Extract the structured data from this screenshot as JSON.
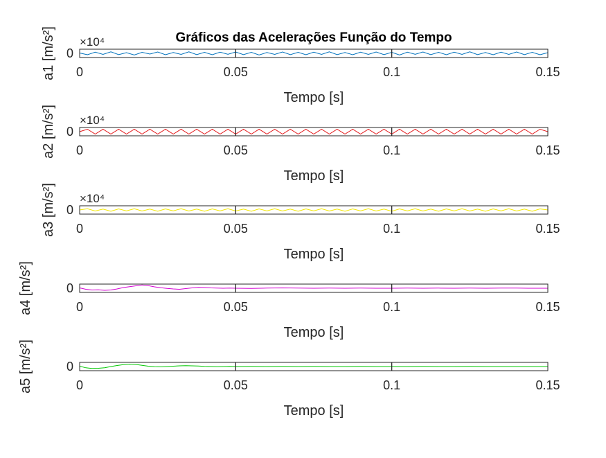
{
  "chart_data": {
    "type": "line",
    "title": "Gráficos das Acelerações Função do Tempo",
    "xlabel": "Tempo [s]",
    "xlim": [
      0,
      0.15
    ],
    "xticks": [
      "0",
      "0.05",
      "0.1",
      "0.15"
    ],
    "ytick": "0",
    "subplots": [
      {
        "ylabel": "a1 [m/s²]",
        "color": "#0072BD",
        "multiplier": "×10⁴",
        "x": [
          0,
          0.0025,
          0.005,
          0.0075,
          0.01,
          0.0125,
          0.015,
          0.0175,
          0.02,
          0.0225,
          0.025,
          0.0275,
          0.03,
          0.0325,
          0.035,
          0.0375,
          0.04,
          0.0425,
          0.045,
          0.0475,
          0.05,
          0.0525,
          0.055,
          0.0575,
          0.06,
          0.0625,
          0.065,
          0.0675,
          0.07,
          0.0725,
          0.075,
          0.0775,
          0.08,
          0.0825,
          0.085,
          0.0875,
          0.09,
          0.0925,
          0.095,
          0.0975,
          0.1,
          0.1025,
          0.105,
          0.1075,
          0.11,
          0.1125,
          0.115,
          0.1175,
          0.12,
          0.1225,
          0.125,
          0.1275,
          0.13,
          0.1325,
          0.135,
          0.1375,
          0.14,
          0.1425,
          0.145,
          0.1475,
          0.15
        ],
        "y": [
          0.1,
          -0.4,
          0.35,
          -0.3,
          0.45,
          -0.35,
          0.2,
          -0.45,
          0.3,
          -0.2,
          0.4,
          -0.4,
          0.25,
          -0.3,
          0.45,
          -0.35,
          0.3,
          -0.4,
          0.35,
          -0.25,
          0.4,
          -0.35,
          0.3,
          -0.45,
          0.25,
          -0.3,
          0.4,
          -0.35,
          0.3,
          -0.4,
          0.35,
          -0.3,
          0.45,
          -0.35,
          0.25,
          -0.4,
          0.35,
          -0.3,
          0.4,
          -0.35,
          0.3,
          -0.45,
          0.35,
          -0.25,
          0.4,
          -0.35,
          0.3,
          -0.4,
          0.35,
          -0.3,
          0.45,
          -0.35,
          0.25,
          -0.4,
          0.35,
          -0.3,
          0.4,
          -0.35,
          0.3,
          -0.4,
          0.2
        ]
      },
      {
        "ylabel": "a2 [m/s²]",
        "color": "#E41A1C",
        "multiplier": "×10⁴",
        "x": [
          0,
          0.0025,
          0.005,
          0.0075,
          0.01,
          0.0125,
          0.015,
          0.0175,
          0.02,
          0.0225,
          0.025,
          0.0275,
          0.03,
          0.0325,
          0.035,
          0.0375,
          0.04,
          0.0425,
          0.045,
          0.0475,
          0.05,
          0.0525,
          0.055,
          0.0575,
          0.06,
          0.0625,
          0.065,
          0.0675,
          0.07,
          0.0725,
          0.075,
          0.0775,
          0.08,
          0.0825,
          0.085,
          0.0875,
          0.09,
          0.0925,
          0.095,
          0.0975,
          0.1,
          0.1025,
          0.105,
          0.1075,
          0.11,
          0.1125,
          0.115,
          0.1175,
          0.12,
          0.1225,
          0.125,
          0.1275,
          0.13,
          0.1325,
          0.135,
          0.1375,
          0.14,
          0.1425,
          0.145,
          0.1475,
          0.15
        ],
        "y": [
          0,
          0.7,
          -0.7,
          0.7,
          -0.7,
          0.7,
          -0.7,
          0.7,
          -0.7,
          0.7,
          -0.7,
          0.7,
          -0.7,
          0.7,
          -0.7,
          0.7,
          -0.7,
          0.7,
          -0.7,
          0.7,
          -0.7,
          0.7,
          -0.7,
          0.7,
          -0.7,
          0.7,
          -0.7,
          0.7,
          -0.7,
          0.7,
          -0.7,
          0.7,
          -0.7,
          0.7,
          -0.7,
          0.7,
          -0.7,
          0.7,
          -0.7,
          0.7,
          -0.7,
          0.7,
          -0.7,
          0.7,
          -0.7,
          0.7,
          -0.7,
          0.7,
          -0.7,
          0.7,
          -0.7,
          0.7,
          -0.7,
          0.7,
          -0.7,
          0.7,
          -0.7,
          0.7,
          -0.7,
          0.7,
          0
        ]
      },
      {
        "ylabel": "a3 [m/s²]",
        "color": "#F2E600",
        "multiplier": "×10⁴",
        "x": [
          0,
          0.0025,
          0.005,
          0.0075,
          0.01,
          0.0125,
          0.015,
          0.0175,
          0.02,
          0.0225,
          0.025,
          0.0275,
          0.03,
          0.0325,
          0.035,
          0.0375,
          0.04,
          0.0425,
          0.045,
          0.0475,
          0.05,
          0.0525,
          0.055,
          0.0575,
          0.06,
          0.0625,
          0.065,
          0.0675,
          0.07,
          0.0725,
          0.075,
          0.0775,
          0.08,
          0.0825,
          0.085,
          0.0875,
          0.09,
          0.0925,
          0.095,
          0.0975,
          0.1,
          0.1025,
          0.105,
          0.1075,
          0.11,
          0.1125,
          0.115,
          0.1175,
          0.12,
          0.1225,
          0.125,
          0.1275,
          0.13,
          0.1325,
          0.135,
          0.1375,
          0.14,
          0.1425,
          0.145,
          0.1475,
          0.15
        ],
        "y": [
          0,
          0.35,
          -0.3,
          0.25,
          -0.35,
          0.3,
          -0.25,
          0.35,
          -0.3,
          0.25,
          -0.35,
          0.3,
          -0.25,
          0.35,
          -0.3,
          0.25,
          -0.35,
          0.3,
          -0.25,
          0.35,
          -0.3,
          0.25,
          -0.35,
          0.3,
          -0.25,
          0.35,
          -0.3,
          0.25,
          -0.35,
          0.3,
          -0.25,
          0.35,
          -0.3,
          0.25,
          -0.35,
          0.3,
          -0.25,
          0.35,
          -0.3,
          0.25,
          -0.35,
          0.3,
          -0.25,
          0.35,
          -0.3,
          0.25,
          -0.35,
          0.3,
          -0.25,
          0.35,
          -0.3,
          0.25,
          -0.35,
          0.3,
          -0.25,
          0.35,
          -0.3,
          0.25,
          -0.35,
          0.3,
          0
        ]
      },
      {
        "ylabel": "a4 [m/s²]",
        "color": "#D400D4",
        "multiplier": "",
        "x": [
          0,
          0.002,
          0.004,
          0.006,
          0.008,
          0.01,
          0.012,
          0.014,
          0.016,
          0.018,
          0.02,
          0.022,
          0.024,
          0.026,
          0.028,
          0.03,
          0.032,
          0.034,
          0.036,
          0.038,
          0.04,
          0.042,
          0.044,
          0.046,
          0.048,
          0.05,
          0.055,
          0.06,
          0.065,
          0.07,
          0.075,
          0.08,
          0.085,
          0.09,
          0.095,
          0.1,
          0.105,
          0.11,
          0.115,
          0.12,
          0.125,
          0.13,
          0.135,
          0.14,
          0.145,
          0.15
        ],
        "y": [
          0.1,
          -0.3,
          -0.5,
          -0.45,
          -0.6,
          -0.5,
          -0.2,
          0.2,
          0.45,
          0.7,
          0.95,
          0.75,
          0.4,
          0.15,
          -0.05,
          -0.2,
          -0.3,
          -0.1,
          0.1,
          0.25,
          0.2,
          0.1,
          0.05,
          0.0,
          0.05,
          0.0,
          -0.05,
          0.05,
          0.1,
          0.05,
          0.0,
          0.05,
          0.0,
          0.05,
          0.0,
          0.0,
          0.05,
          0.0,
          0.05,
          0.0,
          0.05,
          0.0,
          0.05,
          0.05,
          0.0,
          0.0
        ]
      },
      {
        "ylabel": "a5 [m/s²]",
        "color": "#00C800",
        "multiplier": "",
        "x": [
          0,
          0.002,
          0.004,
          0.006,
          0.008,
          0.01,
          0.012,
          0.014,
          0.016,
          0.018,
          0.02,
          0.022,
          0.024,
          0.026,
          0.028,
          0.03,
          0.032,
          0.034,
          0.036,
          0.038,
          0.04,
          0.042,
          0.044,
          0.046,
          0.048,
          0.05,
          0.055,
          0.06,
          0.065,
          0.07,
          0.075,
          0.08,
          0.085,
          0.09,
          0.095,
          0.1,
          0.105,
          0.11,
          0.115,
          0.12,
          0.125,
          0.13,
          0.135,
          0.14,
          0.145,
          0.15
        ],
        "y": [
          0.1,
          -0.35,
          -0.55,
          -0.5,
          -0.35,
          0.0,
          0.3,
          0.55,
          0.7,
          0.6,
          0.35,
          0.1,
          -0.05,
          -0.1,
          0.0,
          0.1,
          0.2,
          0.25,
          0.2,
          0.15,
          0.05,
          0.0,
          -0.05,
          0.0,
          0.05,
          0.0,
          0.05,
          0.0,
          0.05,
          0.0,
          0.05,
          0.0,
          0.0,
          0.05,
          0.0,
          0.0,
          0.0,
          0.05,
          0.0,
          0.0,
          0.05,
          0.0,
          0.0,
          0.0,
          0.0,
          0.0
        ]
      }
    ]
  }
}
